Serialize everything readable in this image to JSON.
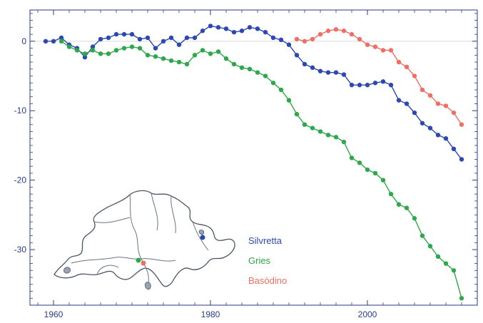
{
  "chart_data": {
    "type": "line",
    "title": "",
    "xlabel": "",
    "ylabel": "",
    "xlim": [
      1957,
      2014
    ],
    "ylim": [
      -38,
      4.5
    ],
    "x_ticks": [
      1960,
      1980,
      2000
    ],
    "x_tick_labels": [
      "1960",
      "1980",
      "2000"
    ],
    "y_ticks": [
      0,
      -10,
      -20,
      -30
    ],
    "y_tick_labels": [
      "0",
      "-10",
      "-20",
      "-30"
    ],
    "grid": false,
    "legend_position": "bottom-center",
    "series": [
      {
        "name": "Silvretta",
        "color": "#2d49b0",
        "x": [
          1959,
          1960,
          1961,
          1962,
          1963,
          1964,
          1965,
          1966,
          1967,
          1968,
          1969,
          1970,
          1971,
          1972,
          1973,
          1974,
          1975,
          1976,
          1977,
          1978,
          1979,
          1980,
          1981,
          1982,
          1983,
          1984,
          1985,
          1986,
          1987,
          1988,
          1989,
          1990,
          1991,
          1992,
          1993,
          1994,
          1995,
          1996,
          1997,
          1998,
          1999,
          2000,
          2001,
          2002,
          2003,
          2004,
          2005,
          2006,
          2007,
          2008,
          2009,
          2010,
          2011,
          2012
        ],
        "values": [
          0.0,
          0.0,
          0.5,
          -0.5,
          -1.0,
          -2.3,
          -0.8,
          0.3,
          0.5,
          1.0,
          1.0,
          1.0,
          0.3,
          0.5,
          -1.0,
          0.0,
          0.5,
          -0.5,
          0.5,
          0.5,
          1.5,
          2.2,
          2.0,
          1.8,
          1.3,
          1.5,
          2.0,
          1.8,
          1.3,
          0.5,
          0.2,
          -0.5,
          -2.0,
          -3.3,
          -3.8,
          -4.3,
          -4.5,
          -4.5,
          -4.8,
          -6.3,
          -6.3,
          -6.3,
          -6.0,
          -5.8,
          -6.3,
          -8.5,
          -9.0,
          -10.3,
          -11.8,
          -12.5,
          -13.5,
          -14.0,
          -15.5,
          -17.0
        ]
      },
      {
        "name": "Gries",
        "color": "#2ea84a",
        "x": [
          1961,
          1962,
          1963,
          1964,
          1965,
          1966,
          1967,
          1968,
          1969,
          1970,
          1971,
          1972,
          1973,
          1974,
          1975,
          1976,
          1977,
          1978,
          1979,
          1980,
          1981,
          1982,
          1983,
          1984,
          1985,
          1986,
          1987,
          1988,
          1989,
          1990,
          1991,
          1992,
          1993,
          1994,
          1995,
          1996,
          1997,
          1998,
          1999,
          2000,
          2001,
          2002,
          2003,
          2004,
          2005,
          2006,
          2007,
          2008,
          2009,
          2010,
          2011,
          2012
        ],
        "values": [
          0.0,
          -0.8,
          -1.3,
          -1.8,
          -1.3,
          -1.8,
          -1.8,
          -1.3,
          -1.0,
          -0.8,
          -1.0,
          -2.0,
          -2.2,
          -2.5,
          -2.8,
          -3.0,
          -3.3,
          -2.0,
          -1.3,
          -1.8,
          -1.5,
          -2.5,
          -3.3,
          -3.8,
          -4.0,
          -4.5,
          -5.0,
          -6.0,
          -7.0,
          -8.5,
          -10.5,
          -12.0,
          -12.5,
          -13.0,
          -13.5,
          -13.8,
          -14.5,
          -16.8,
          -17.5,
          -18.5,
          -19.0,
          -20.0,
          -22.0,
          -23.5,
          -24.0,
          -25.5,
          -28.0,
          -29.5,
          -31.0,
          -32.0,
          -33.0,
          -37.0
        ]
      },
      {
        "name": "Basòdino",
        "color": "#ee6f63",
        "x": [
          1991,
          1992,
          1993,
          1994,
          1995,
          1996,
          1997,
          1998,
          1999,
          2000,
          2001,
          2002,
          2003,
          2004,
          2005,
          2006,
          2007,
          2008,
          2009,
          2010,
          2011,
          2012
        ],
        "values": [
          0.3,
          0.0,
          0.3,
          1.0,
          1.5,
          1.7,
          1.5,
          1.0,
          0.3,
          -0.5,
          -0.8,
          -1.3,
          -1.3,
          -3.0,
          -3.7,
          -5.0,
          -7.0,
          -7.8,
          -9.0,
          -9.3,
          -10.3,
          -12.0
        ]
      }
    ],
    "inset_map": {
      "markers": [
        {
          "series": "Silvretta",
          "color": "#2d49b0"
        },
        {
          "series": "Gries",
          "color": "#2ea84a"
        },
        {
          "series": "Basòdino",
          "color": "#ee6f63"
        }
      ]
    }
  }
}
